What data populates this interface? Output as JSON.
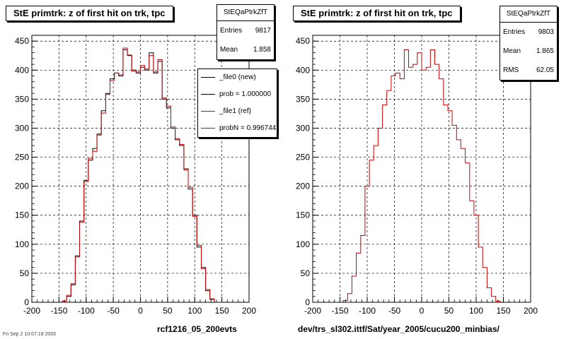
{
  "date_stamp": "Fri Sep  2 10:07:18 2005",
  "panels": [
    {
      "title": "StE primtrk: z of first hit on trk, tpc",
      "stats": {
        "name": "StEQaPtrkZfT",
        "rows": [
          {
            "label": "Entries",
            "value": "9817"
          },
          {
            "label": "Mean",
            "value": "1.858"
          }
        ]
      },
      "legend": [
        {
          "label": "_file0 (new)",
          "color": "#000000"
        },
        {
          "label": "prob = 1.000000",
          "color": "#000000"
        },
        {
          "label": "_file1 (ref)",
          "color": "#cc0000"
        },
        {
          "label": "probN = 0.996744",
          "color": "#cc0000"
        }
      ],
      "xcaption": "rcf1216_05_200evts"
    },
    {
      "title": "StE primtrk: z of first hit on trk, tpc",
      "stats": {
        "name": "StEQaPtrkZfT",
        "rows": [
          {
            "label": "Entries",
            "value": "9803"
          },
          {
            "label": "Mean",
            "value": "1.865"
          },
          {
            "label": "RMS",
            "value": "62.05"
          }
        ]
      },
      "legend": [],
      "xcaption": "dev/trs_sl302.ittf/Sat/year_2005/cucu200_minbias/"
    }
  ],
  "chart_data": [
    {
      "type": "histogram",
      "title": "StE primtrk: z of first hit on trk, tpc",
      "xlim": [
        -200,
        200
      ],
      "ylim": [
        0,
        460
      ],
      "xticks": [
        -200,
        -150,
        -100,
        -50,
        0,
        50,
        100,
        150,
        200
      ],
      "yticks": [
        0,
        50,
        100,
        150,
        200,
        250,
        300,
        350,
        400,
        450
      ],
      "grid": true,
      "bin_edges_start": -200,
      "bin_width": 8,
      "series": [
        {
          "name": "_file0 (new)",
          "color": "#000000",
          "values": [
            0,
            0,
            0,
            0,
            0,
            0,
            0,
            2,
            10,
            30,
            80,
            140,
            210,
            245,
            265,
            290,
            330,
            360,
            385,
            395,
            390,
            435,
            425,
            400,
            395,
            405,
            400,
            430,
            395,
            415,
            350,
            335,
            300,
            280,
            270,
            230,
            195,
            150,
            95,
            60,
            20,
            5,
            0,
            0,
            0,
            0,
            0,
            0,
            0,
            0
          ]
        },
        {
          "name": "_file1 (ref)",
          "color": "#cc0000",
          "values": [
            0,
            0,
            0,
            0,
            0,
            0,
            0,
            2,
            12,
            32,
            78,
            138,
            208,
            248,
            260,
            288,
            326,
            358,
            382,
            395,
            392,
            438,
            426,
            398,
            397,
            408,
            402,
            425,
            397,
            418,
            352,
            338,
            302,
            282,
            272,
            228,
            198,
            148,
            98,
            58,
            22,
            6,
            0,
            0,
            0,
            0,
            0,
            0,
            0,
            0
          ]
        }
      ]
    },
    {
      "type": "histogram",
      "title": "StE primtrk: z of first hit on trk, tpc",
      "xlim": [
        -200,
        200
      ],
      "ylim": [
        0,
        460
      ],
      "xticks": [
        -200,
        -150,
        -100,
        -50,
        0,
        50,
        100,
        150,
        200
      ],
      "yticks": [
        0,
        50,
        100,
        150,
        200,
        250,
        300,
        350,
        400,
        450
      ],
      "grid": true,
      "bin_edges_start": -200,
      "bin_width": 8,
      "series": [
        {
          "name": "",
          "color": "#cc0000",
          "values": [
            0,
            0,
            0,
            0,
            0,
            0,
            0,
            3,
            15,
            45,
            85,
            115,
            200,
            245,
            270,
            300,
            340,
            365,
            390,
            395,
            385,
            435,
            405,
            410,
            430,
            400,
            405,
            435,
            410,
            385,
            340,
            330,
            305,
            280,
            265,
            240,
            175,
            150,
            95,
            60,
            25,
            10,
            2,
            0,
            0,
            0,
            0,
            0,
            0,
            0
          ]
        }
      ]
    }
  ]
}
